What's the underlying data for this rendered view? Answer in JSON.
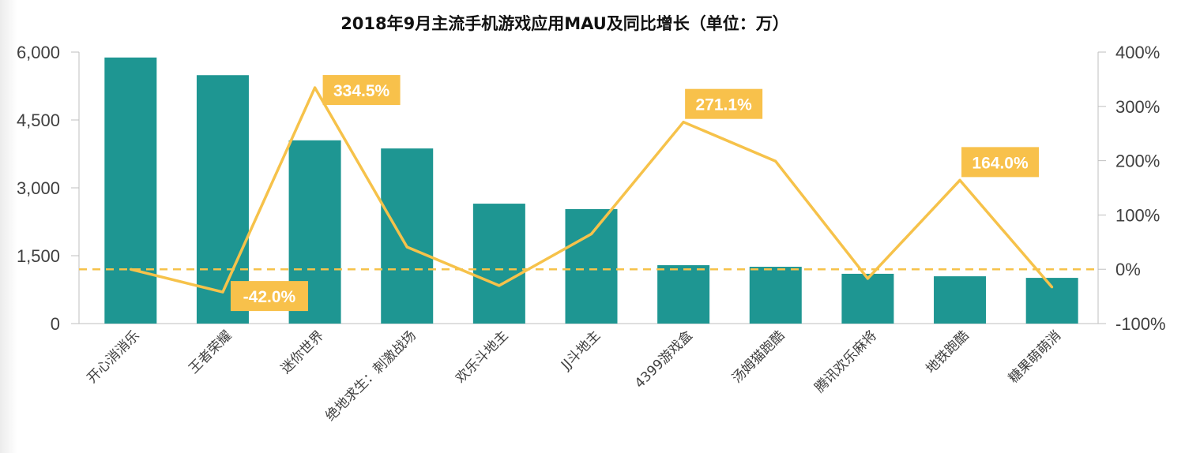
{
  "chart_data": {
    "type": "bar+line",
    "title": "2018年9月主流手机游戏应用MAU及同比增长（单位：万）",
    "categories": [
      "开心消消乐",
      "王者荣耀",
      "迷你世界",
      "绝地求生：刺激战场",
      "欢乐斗地主",
      "JJ斗地主",
      "4399游戏盒",
      "汤姆猫跑酷",
      "腾讯欢乐麻将",
      "地铁跑酷",
      "糖果萌萌消"
    ],
    "series": [
      {
        "name": "MAU",
        "axis": "left",
        "type": "bar",
        "color": "#1e9692",
        "values": [
          5880,
          5490,
          4050,
          3870,
          2650,
          2530,
          1290,
          1255,
          1100,
          1045,
          1010
        ]
      },
      {
        "name": "同比增长",
        "axis": "right",
        "type": "line",
        "color": "#f6c24a",
        "values": [
          0,
          -42.0,
          334.5,
          41,
          -30,
          65,
          271.1,
          199,
          -17,
          164.0,
          -33
        ]
      }
    ],
    "annotations": [
      {
        "index": 1,
        "text": "-42.0%"
      },
      {
        "index": 2,
        "text": "334.5%"
      },
      {
        "index": 6,
        "text": "271.1%"
      },
      {
        "index": 9,
        "text": "164.0%"
      }
    ],
    "ylim_left": [
      0,
      6000
    ],
    "yticks_left": [
      "0",
      "1,500",
      "3,000",
      "4,500",
      "6,000"
    ],
    "ylim_right": [
      -100,
      400
    ],
    "yticks_right": [
      "-100%",
      "0%",
      "100%",
      "200%",
      "300%",
      "400%"
    ],
    "reference_line": {
      "value": 0,
      "axis": "right",
      "style": "dashed"
    },
    "grid": false
  }
}
